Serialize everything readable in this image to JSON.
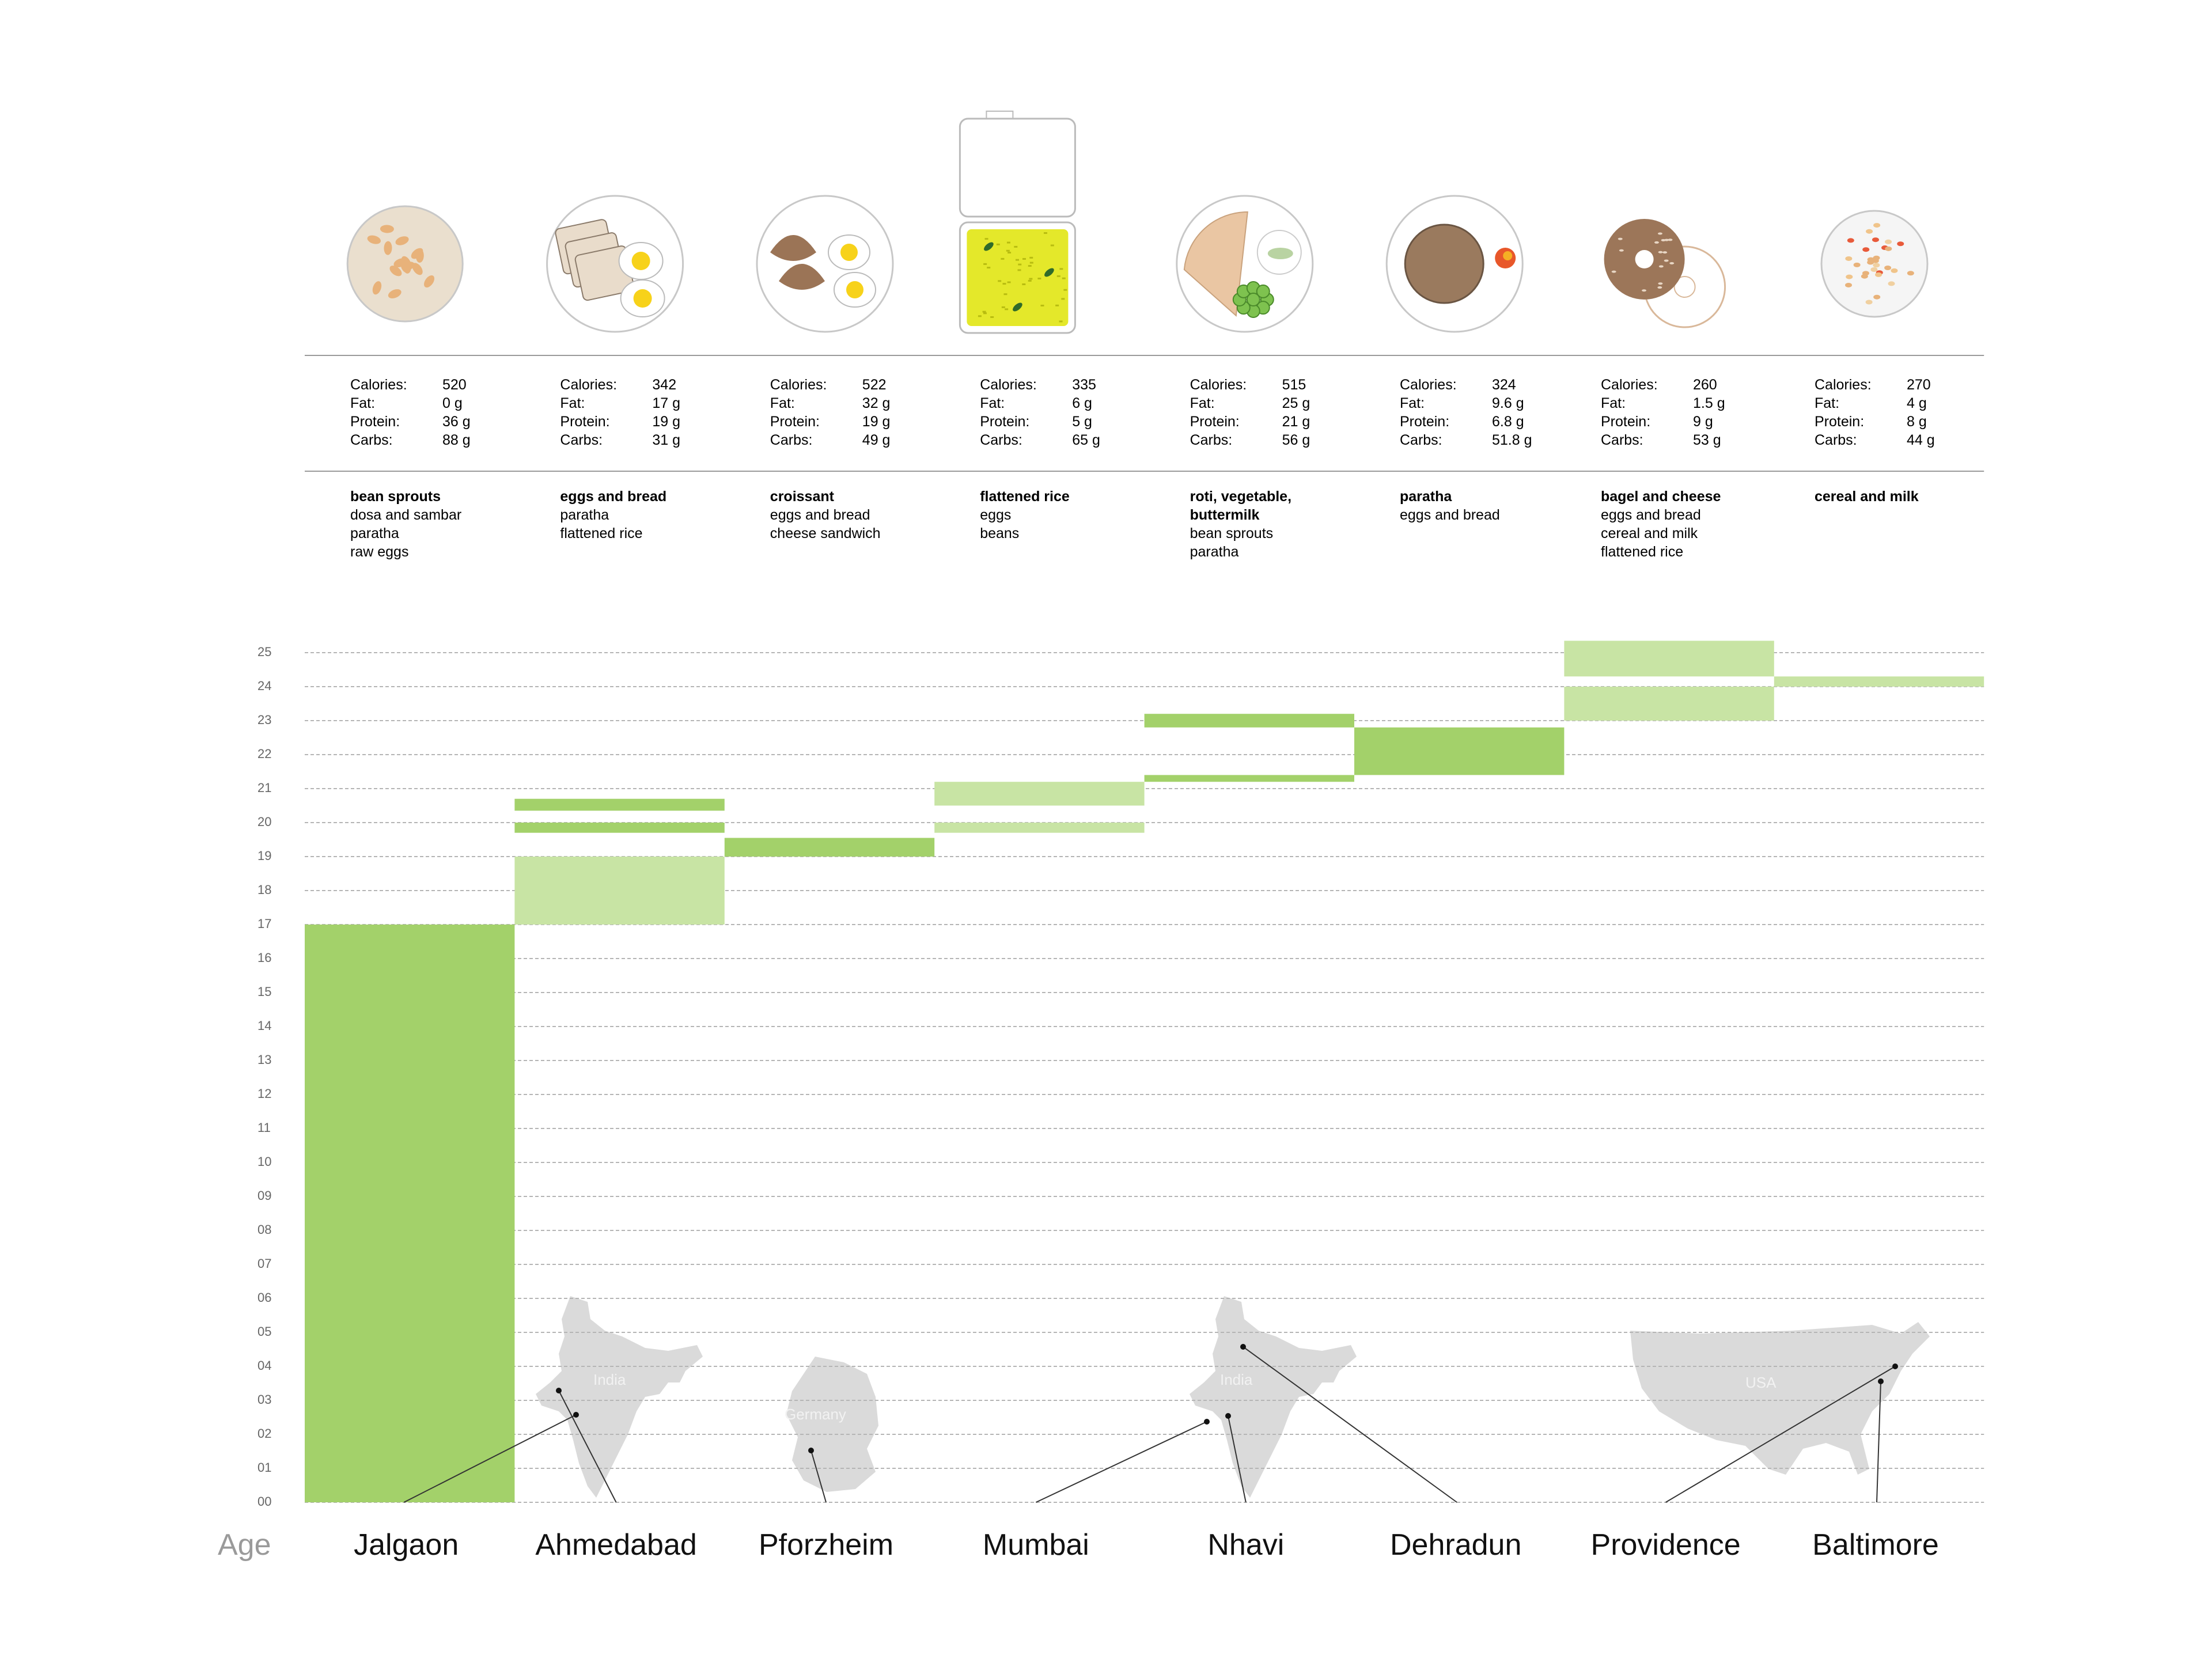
{
  "age_axis_label": "Age",
  "nutrition_labels": [
    "Calories:",
    "Fat:",
    "Protein:",
    "Carbs:"
  ],
  "map_labels": [
    "India",
    "Germany",
    "India",
    "USA"
  ],
  "colors": {
    "bar_strong": "#a3d16a",
    "bar_light": "#c8e4a4",
    "grid": "#b5b5b5",
    "map_fill": "#dadada",
    "leader_line": "#333333"
  },
  "stops": [
    {
      "city": "Jalgaon",
      "icon": "cashew-plate-icon",
      "nutrition": [
        "520",
        "0 g",
        "36 g",
        "88 g"
      ],
      "main_food": "bean sprouts",
      "other_foods": [
        "dosa and sambar",
        "paratha",
        "raw eggs"
      ]
    },
    {
      "city": "Ahmedabad",
      "icon": "bread-and-eggs-plate-icon",
      "nutrition": [
        "342",
        "17 g",
        "19 g",
        "31 g"
      ],
      "main_food": "eggs and bread",
      "other_foods": [
        "paratha",
        "flattened rice"
      ]
    },
    {
      "city": "Pforzheim",
      "icon": "croissant-plate-icon",
      "nutrition": [
        "522",
        "32 g",
        "19 g",
        "49 g"
      ],
      "main_food": "croissant",
      "other_foods": [
        "eggs and bread",
        "cheese sandwich"
      ]
    },
    {
      "city": "Mumbai",
      "icon": "lunchbox-rice-icon",
      "nutrition": [
        "335",
        "6 g",
        "5 g",
        "65 g"
      ],
      "main_food": "flattened rice",
      "other_foods": [
        "eggs",
        "beans"
      ]
    },
    {
      "city": "Nhavi",
      "icon": "roti-plate-icon",
      "nutrition": [
        "515",
        "25 g",
        "21 g",
        "56 g"
      ],
      "main_food": "roti, vegetable, buttermilk",
      "other_foods": [
        "bean sprouts",
        "paratha"
      ]
    },
    {
      "city": "Dehradun",
      "icon": "paratha-plate-icon",
      "nutrition": [
        "324",
        "9.6 g",
        "6.8 g",
        "51.8 g"
      ],
      "main_food": "paratha",
      "other_foods": [
        "eggs and bread"
      ]
    },
    {
      "city": "Providence",
      "icon": "bagel-plate-icon",
      "nutrition": [
        "260",
        "1.5 g",
        "9 g",
        "53 g"
      ],
      "main_food": "bagel and cheese",
      "other_foods": [
        "eggs and bread",
        "cereal and milk",
        "flattened rice"
      ]
    },
    {
      "city": "Baltimore",
      "icon": "cereal-bowl-icon",
      "nutrition": [
        "270",
        "4 g",
        "8 g",
        "44 g"
      ],
      "main_food": "cereal and milk",
      "other_foods": []
    }
  ],
  "chart_data": {
    "type": "bar",
    "title": "",
    "xlabel": "",
    "ylabel": "Age",
    "ylim": [
      0,
      25
    ],
    "y_ticks": [
      "00",
      "01",
      "02",
      "03",
      "04",
      "05",
      "06",
      "07",
      "08",
      "09",
      "10",
      "11",
      "12",
      "13",
      "14",
      "15",
      "16",
      "17",
      "18",
      "19",
      "20",
      "21",
      "22",
      "23",
      "24",
      "25"
    ],
    "categories": [
      "Jalgaon",
      "Ahmedabad",
      "Pforzheim",
      "Mumbai",
      "Nhavi",
      "Dehradun",
      "Providence",
      "Baltimore"
    ],
    "grid": true,
    "segments": [
      {
        "category": "Jalgaon",
        "from": 0,
        "to": 17,
        "tone": "strong"
      },
      {
        "category": "Ahmedabad",
        "from": 17,
        "to": 19,
        "tone": "light"
      },
      {
        "category": "Ahmedabad",
        "from": 19.7,
        "to": 20.0,
        "tone": "strong"
      },
      {
        "category": "Ahmedabad",
        "from": 20.35,
        "to": 20.7,
        "tone": "strong"
      },
      {
        "category": "Pforzheim",
        "from": 19,
        "to": 19.55,
        "tone": "strong"
      },
      {
        "category": "Mumbai",
        "from": 19.7,
        "to": 20.0,
        "tone": "light"
      },
      {
        "category": "Mumbai",
        "from": 20.5,
        "to": 21.2,
        "tone": "light"
      },
      {
        "category": "Nhavi",
        "from": 21.2,
        "to": 21.4,
        "tone": "strong"
      },
      {
        "category": "Nhavi",
        "from": 22.8,
        "to": 23.2,
        "tone": "strong"
      },
      {
        "category": "Dehradun",
        "from": 21.4,
        "to": 22.8,
        "tone": "strong"
      },
      {
        "category": "Providence",
        "from": 23.0,
        "to": 24.0,
        "tone": "light"
      },
      {
        "category": "Providence",
        "from": 24.3,
        "to": 25.35,
        "tone": "light"
      },
      {
        "category": "Baltimore",
        "from": 24.0,
        "to": 24.3,
        "tone": "light"
      }
    ]
  }
}
